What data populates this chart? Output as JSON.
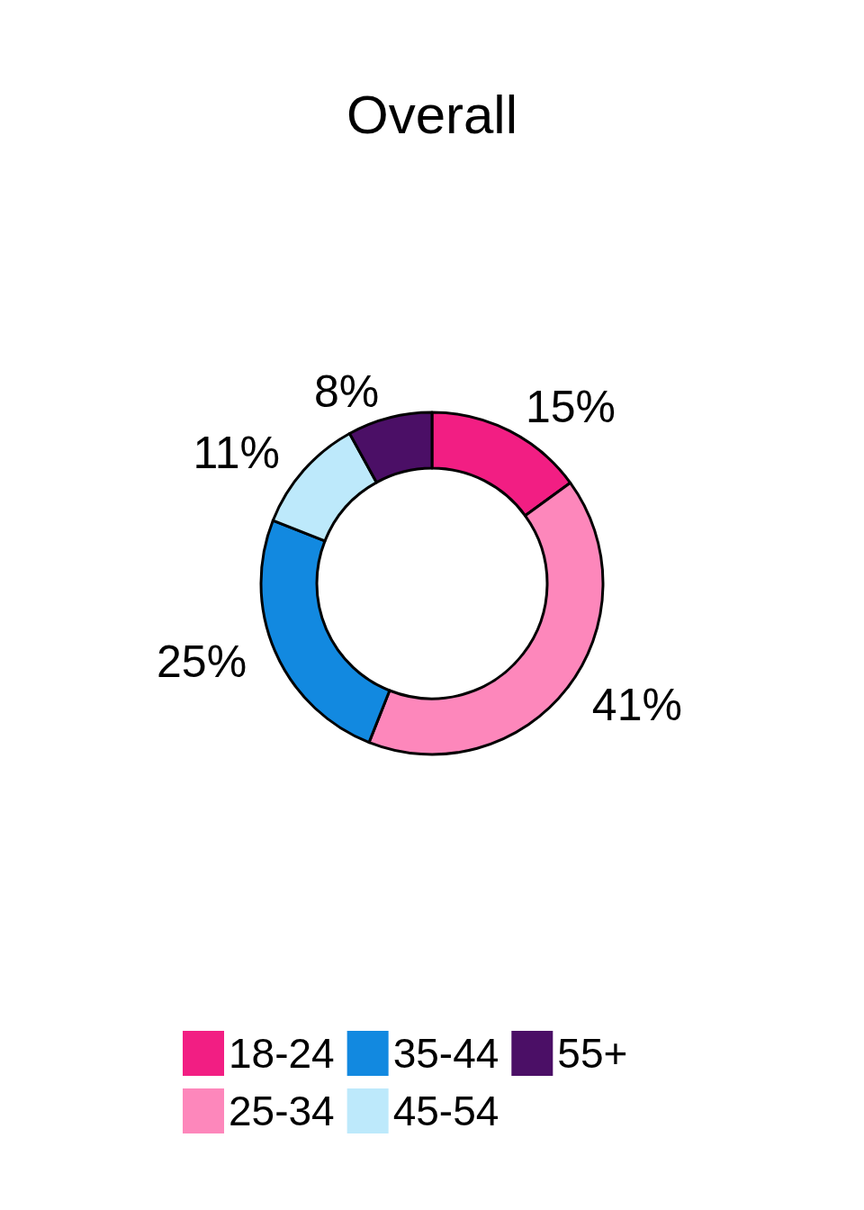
{
  "chart_data": {
    "type": "donut",
    "title": "Overall",
    "categories": [
      "18-24",
      "25-34",
      "35-44",
      "45-54",
      "55+"
    ],
    "values": [
      15,
      41,
      25,
      11,
      8
    ],
    "value_labels": [
      "15%",
      "41%",
      "25%",
      "11%",
      "8%"
    ],
    "colors": [
      "#f21e83",
      "#fd87bb",
      "#1289e0",
      "#bde9fb",
      "#4b0f66"
    ],
    "legend": "bottom"
  }
}
